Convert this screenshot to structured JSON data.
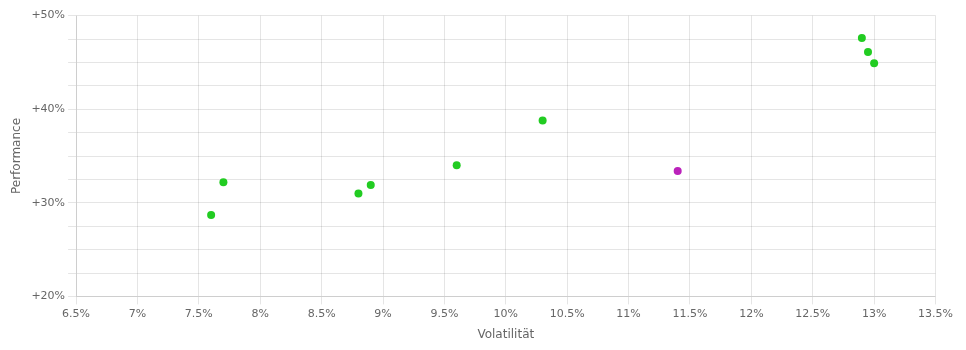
{
  "chart_data": {
    "type": "scatter",
    "xlabel": "Volatilität",
    "ylabel": "Performance",
    "series": [
      {
        "color": "#22cc22",
        "x": [
          0.077,
          0.076,
          0.089,
          0.088,
          0.096,
          0.103,
          0.129,
          0.1295,
          0.13
        ],
        "values": [
          0.322,
          0.287,
          0.319,
          0.31,
          0.34,
          0.388,
          0.476,
          0.461,
          0.449
        ]
      },
      {
        "color": "#bb22bb",
        "x": [
          0.114
        ],
        "values": [
          0.334
        ]
      }
    ],
    "xlim": [
      0.065,
      0.135
    ],
    "xticks": [
      {
        "value": 0.065,
        "label": "6.5%"
      },
      {
        "value": 0.07,
        "label": "7%"
      },
      {
        "value": 0.075,
        "label": "7.5%"
      },
      {
        "value": 0.08,
        "label": "8%"
      },
      {
        "value": 0.085,
        "label": "8.5%"
      },
      {
        "value": 0.09,
        "label": "9%"
      },
      {
        "value": 0.095,
        "label": "9.5%"
      },
      {
        "value": 0.1,
        "label": "10%"
      },
      {
        "value": 0.105,
        "label": "10.5%"
      },
      {
        "value": 0.11,
        "label": "11%"
      },
      {
        "value": 0.115,
        "label": "11.5%"
      },
      {
        "value": 0.12,
        "label": "12%"
      },
      {
        "value": 0.125,
        "label": "12.5%"
      },
      {
        "value": 0.13,
        "label": "13%"
      },
      {
        "value": 0.135,
        "label": "13.5%"
      }
    ],
    "ylim": [
      0.2,
      0.5
    ],
    "yticks": [
      {
        "value": 0.2,
        "label": "+20%"
      },
      {
        "value": 0.225,
        "label": null
      },
      {
        "value": 0.25,
        "label": null
      },
      {
        "value": 0.275,
        "label": null
      },
      {
        "value": 0.3,
        "label": "+30%"
      },
      {
        "value": 0.325,
        "label": null
      },
      {
        "value": 0.35,
        "label": null
      },
      {
        "value": 0.375,
        "label": null
      },
      {
        "value": 0.4,
        "label": "+40%"
      },
      {
        "value": 0.425,
        "label": null
      },
      {
        "value": 0.45,
        "label": null
      },
      {
        "value": 0.475,
        "label": null
      },
      {
        "value": 0.5,
        "label": "+50%"
      }
    ],
    "grid": true
  }
}
